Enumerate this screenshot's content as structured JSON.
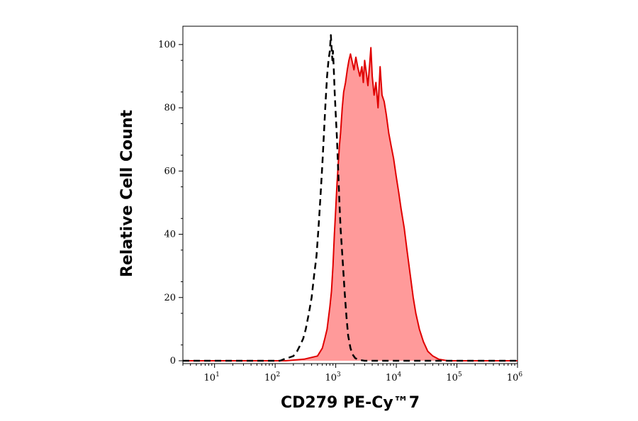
{
  "chart_data": {
    "type": "area",
    "title": "",
    "xlabel": "CD279 PE-Cy™7",
    "ylabel": "Relative Cell Count",
    "x_scale": "log",
    "xlim": [
      3,
      1000000
    ],
    "ylim": [
      0,
      104
    ],
    "x_ticks": [
      {
        "base": "10",
        "exp": "1",
        "value": 10
      },
      {
        "base": "10",
        "exp": "2",
        "value": 100
      },
      {
        "base": "10",
        "exp": "3",
        "value": 1000
      },
      {
        "base": "10",
        "exp": "4",
        "value": 10000
      },
      {
        "base": "10",
        "exp": "5",
        "value": 100000
      },
      {
        "base": "10",
        "exp": "6",
        "value": 1000000
      }
    ],
    "y_ticks": [
      {
        "label": "0",
        "value": 0
      },
      {
        "label": "20",
        "value": 20
      },
      {
        "label": "40",
        "value": 40
      },
      {
        "label": "60",
        "value": 60
      },
      {
        "label": "80",
        "value": 80
      },
      {
        "label": "100",
        "value": 100
      }
    ],
    "grid": false,
    "series": [
      {
        "style": "filled",
        "color": "#e00000",
        "fill": "#ff9a9a",
        "points": [
          [
            3,
            0
          ],
          [
            150,
            0
          ],
          [
            300,
            0.5
          ],
          [
            500,
            1.5
          ],
          [
            600,
            4
          ],
          [
            660,
            7
          ],
          [
            720,
            10
          ],
          [
            800,
            17
          ],
          [
            850,
            22
          ],
          [
            900,
            30
          ],
          [
            950,
            40
          ],
          [
            1000,
            48
          ],
          [
            1050,
            56
          ],
          [
            1100,
            62
          ],
          [
            1150,
            68
          ],
          [
            1200,
            72
          ],
          [
            1280,
            80
          ],
          [
            1350,
            85
          ],
          [
            1450,
            88
          ],
          [
            1550,
            92
          ],
          [
            1650,
            95
          ],
          [
            1750,
            97
          ],
          [
            1850,
            95
          ],
          [
            2000,
            92
          ],
          [
            2150,
            96
          ],
          [
            2300,
            93
          ],
          [
            2500,
            90
          ],
          [
            2700,
            93
          ],
          [
            2850,
            88
          ],
          [
            3000,
            95
          ],
          [
            3200,
            91
          ],
          [
            3400,
            87
          ],
          [
            3600,
            93
          ],
          [
            3800,
            99
          ],
          [
            4000,
            90
          ],
          [
            4300,
            84
          ],
          [
            4600,
            88
          ],
          [
            5000,
            80
          ],
          [
            5400,
            93
          ],
          [
            5800,
            84
          ],
          [
            6300,
            82
          ],
          [
            6800,
            78
          ],
          [
            7500,
            72
          ],
          [
            8200,
            68
          ],
          [
            9000,
            64
          ],
          [
            10000,
            58
          ],
          [
            11000,
            53
          ],
          [
            12000,
            48
          ],
          [
            13500,
            42
          ],
          [
            15000,
            35
          ],
          [
            17000,
            27
          ],
          [
            19000,
            20
          ],
          [
            21000,
            15
          ],
          [
            24000,
            10
          ],
          [
            28000,
            6
          ],
          [
            33000,
            3
          ],
          [
            40000,
            1.5
          ],
          [
            50000,
            0.5
          ],
          [
            70000,
            0
          ],
          [
            1000000,
            0
          ]
        ]
      },
      {
        "style": "dashed",
        "color": "#000000",
        "fill": "none",
        "points": [
          [
            3,
            0
          ],
          [
            120,
            0
          ],
          [
            140,
            0.5
          ],
          [
            170,
            1
          ],
          [
            200,
            1.5
          ],
          [
            230,
            3
          ],
          [
            260,
            5
          ],
          [
            290,
            7
          ],
          [
            320,
            10
          ],
          [
            360,
            15
          ],
          [
            400,
            20
          ],
          [
            440,
            27
          ],
          [
            480,
            33
          ],
          [
            520,
            42
          ],
          [
            560,
            52
          ],
          [
            600,
            62
          ],
          [
            640,
            72
          ],
          [
            680,
            82
          ],
          [
            720,
            90
          ],
          [
            760,
            95
          ],
          [
            800,
            98
          ],
          [
            830,
            103
          ],
          [
            860,
            98
          ],
          [
            880,
            95
          ],
          [
            900,
            98
          ],
          [
            930,
            92
          ],
          [
            960,
            85
          ],
          [
            1000,
            78
          ],
          [
            1050,
            70
          ],
          [
            1100,
            60
          ],
          [
            1150,
            50
          ],
          [
            1200,
            42
          ],
          [
            1300,
            32
          ],
          [
            1400,
            22
          ],
          [
            1500,
            14
          ],
          [
            1600,
            8
          ],
          [
            1750,
            4
          ],
          [
            1900,
            2
          ],
          [
            2100,
            0.8
          ],
          [
            2400,
            0.3
          ],
          [
            3000,
            0
          ],
          [
            1000000,
            0
          ]
        ]
      }
    ]
  }
}
